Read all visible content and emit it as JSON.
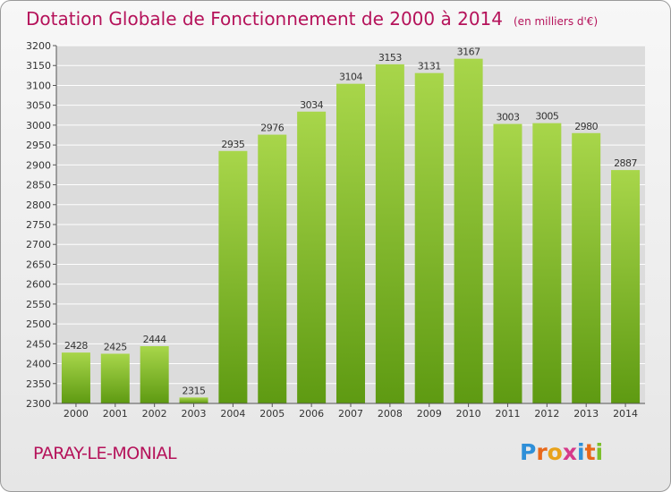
{
  "title": "Dotation Globale de Fonctionnement de 2000 à 2014",
  "subtitle": "(en milliers d'€)",
  "town": "PARAY-LE-MONIAL",
  "logo": {
    "text": "Proxiti",
    "colors": [
      "#2f8fd8",
      "#e8681a",
      "#e8a21a",
      "#d63a8a",
      "#2f8fd8",
      "#e8681a",
      "#7bbf2a"
    ]
  },
  "colors": {
    "title": "#b5125a",
    "bar_light": "#a8d64a",
    "bar_dark": "#5e9a12",
    "grid": "#ffffff",
    "plot_bg": "#dcdcdc"
  },
  "chart_data": {
    "type": "bar",
    "categories": [
      "2000",
      "2001",
      "2002",
      "2003",
      "2004",
      "2005",
      "2006",
      "2007",
      "2008",
      "2009",
      "2010",
      "2011",
      "2012",
      "2013",
      "2014"
    ],
    "values": [
      2428,
      2425,
      2444,
      2315,
      2935,
      2976,
      3034,
      3104,
      3153,
      3131,
      3167,
      3003,
      3005,
      2980,
      2887
    ],
    "ylim": [
      2300,
      3200
    ],
    "yticks": [
      2300,
      2350,
      2400,
      2450,
      2500,
      2550,
      2600,
      2650,
      2700,
      2750,
      2800,
      2850,
      2900,
      2950,
      3000,
      3050,
      3100,
      3150,
      3200
    ],
    "grid": true
  }
}
